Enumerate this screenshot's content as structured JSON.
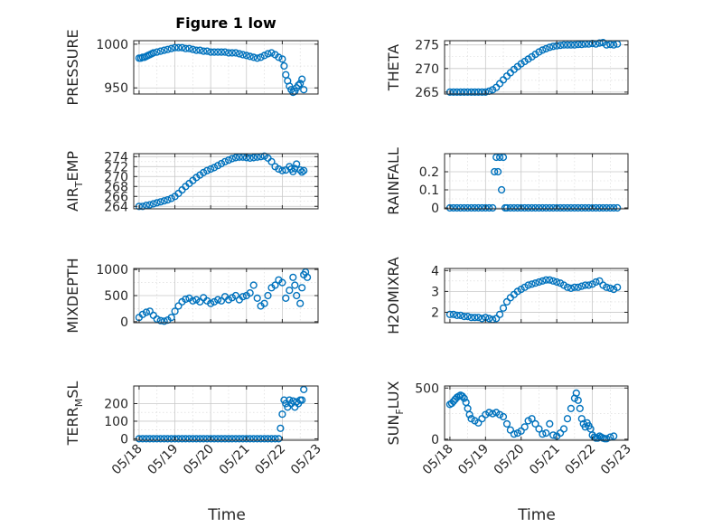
{
  "figure": {
    "title": "Figure 1 low",
    "xlabel": "Time"
  },
  "colors": {
    "marker": "#0072BD",
    "axes": "#262626",
    "grid": "#c8c8c8"
  },
  "chart_data": [
    {
      "type": "scatter",
      "name": "pressure",
      "ylabel": "PRESSURE",
      "ylim": [
        943,
        1004
      ],
      "yticks": [
        "950",
        "1000"
      ],
      "ytick_values": [
        950,
        1000
      ],
      "xticks": [],
      "grid": true,
      "x": [
        0,
        0.05,
        0.1,
        0.15,
        0.2,
        0.25,
        0.3,
        0.35,
        0.4,
        0.5,
        0.6,
        0.7,
        0.8,
        0.9,
        1.0,
        1.1,
        1.2,
        1.3,
        1.4,
        1.5,
        1.6,
        1.7,
        1.8,
        1.9,
        2.0,
        2.1,
        2.2,
        2.3,
        2.4,
        2.5,
        2.6,
        2.7,
        2.8,
        2.9,
        3.0,
        3.1,
        3.2,
        3.3,
        3.4,
        3.5,
        3.6,
        3.7,
        3.8,
        3.9,
        4.0,
        4.05,
        4.1,
        4.15,
        4.2,
        4.25,
        4.3,
        4.35,
        4.4,
        4.45,
        4.5,
        4.55,
        4.6
      ],
      "y": [
        984,
        984,
        985,
        985,
        986,
        987,
        988,
        989,
        990,
        991,
        992,
        993,
        994,
        995,
        996,
        996,
        996,
        995,
        995,
        994,
        993,
        993,
        992,
        992,
        991,
        991,
        991,
        991,
        991,
        990,
        990,
        990,
        989,
        988,
        987,
        986,
        985,
        984,
        985,
        987,
        989,
        990,
        988,
        985,
        983,
        975,
        965,
        958,
        952,
        948,
        945,
        946,
        950,
        953,
        955,
        960,
        948
      ]
    },
    {
      "type": "scatter",
      "name": "theta",
      "ylabel": "THETA",
      "ylim": [
        264.6,
        275.9
      ],
      "yticks": [
        "265",
        "270",
        "275"
      ],
      "ytick_values": [
        265,
        270,
        275
      ],
      "xticks": [],
      "grid": true,
      "x": [
        0,
        0.1,
        0.2,
        0.3,
        0.4,
        0.5,
        0.6,
        0.7,
        0.8,
        0.9,
        1.0,
        1.1,
        1.2,
        1.3,
        1.4,
        1.5,
        1.6,
        1.7,
        1.8,
        1.9,
        2.0,
        2.1,
        2.2,
        2.3,
        2.4,
        2.5,
        2.6,
        2.7,
        2.8,
        2.9,
        3.0,
        3.1,
        3.2,
        3.3,
        3.4,
        3.5,
        3.6,
        3.7,
        3.8,
        3.9,
        4.0,
        4.1,
        4.2,
        4.3,
        4.4,
        4.5,
        4.6,
        4.7
      ],
      "y": [
        265,
        265,
        265,
        265,
        265,
        265,
        265,
        265,
        265,
        265,
        265,
        265.2,
        265.5,
        266,
        266.8,
        267.6,
        268.4,
        269.1,
        269.8,
        270.4,
        271,
        271.5,
        272,
        272.5,
        273,
        273.5,
        273.9,
        274.2,
        274.5,
        274.7,
        274.8,
        274.9,
        275,
        275,
        275,
        275,
        275.1,
        275.1,
        275.2,
        275.2,
        275.3,
        275.2,
        275.4,
        275.5,
        275,
        275.1,
        275,
        275.2
      ]
    },
    {
      "type": "scatter",
      "name": "air-temp",
      "ylabel": "AIR_TEMP",
      "ylim": [
        263.5,
        274.6
      ],
      "yticks": [
        "264",
        "266",
        "268",
        "270",
        "272",
        "274"
      ],
      "ytick_values": [
        264,
        266,
        268,
        270,
        272,
        274
      ],
      "xticks": [],
      "grid": true,
      "x": [
        0,
        0.1,
        0.2,
        0.3,
        0.4,
        0.5,
        0.6,
        0.7,
        0.8,
        0.9,
        1.0,
        1.1,
        1.2,
        1.3,
        1.4,
        1.5,
        1.6,
        1.7,
        1.8,
        1.9,
        2.0,
        2.1,
        2.2,
        2.3,
        2.4,
        2.5,
        2.6,
        2.7,
        2.8,
        2.9,
        3.0,
        3.1,
        3.2,
        3.3,
        3.4,
        3.5,
        3.6,
        3.7,
        3.8,
        3.9,
        4.0,
        4.1,
        4.2,
        4.25,
        4.3,
        4.35,
        4.4,
        4.5,
        4.55,
        4.6
      ],
      "y": [
        264,
        264,
        264.2,
        264.3,
        264.5,
        264.7,
        264.9,
        265.1,
        265.3,
        265.6,
        266,
        266.6,
        267.3,
        268,
        268.6,
        269.2,
        269.8,
        270.3,
        270.8,
        271.2,
        271.5,
        271.8,
        272.2,
        272.6,
        273,
        273.3,
        273.6,
        273.8,
        273.9,
        273.9,
        273.8,
        273.7,
        273.8,
        273.9,
        274,
        274.1,
        273.7,
        273,
        272,
        271.5,
        271.2,
        271.3,
        272,
        271.5,
        271,
        271.6,
        272.5,
        271.3,
        270.9,
        271.2
      ]
    },
    {
      "type": "scatter",
      "name": "rainfall",
      "ylabel": "RAINFALL",
      "ylim": [
        -0.005,
        0.3
      ],
      "yticks": [
        "0",
        "0.1",
        "0.2"
      ],
      "ytick_values": [
        0,
        0.1,
        0.2
      ],
      "xticks": [],
      "grid": true,
      "x": [
        0,
        0.1,
        0.2,
        0.3,
        0.4,
        0.5,
        0.6,
        0.7,
        0.8,
        0.9,
        1.0,
        1.1,
        1.2,
        1.25,
        1.3,
        1.35,
        1.4,
        1.45,
        1.5,
        1.55,
        1.6,
        1.7,
        1.8,
        1.9,
        2.0,
        2.1,
        2.2,
        2.3,
        2.4,
        2.5,
        2.6,
        2.7,
        2.8,
        2.9,
        3.0,
        3.1,
        3.2,
        3.3,
        3.4,
        3.5,
        3.6,
        3.7,
        3.8,
        3.9,
        4.0,
        4.1,
        4.2,
        4.3,
        4.4,
        4.5,
        4.6,
        4.7
      ],
      "y": [
        0,
        0,
        0,
        0,
        0,
        0,
        0,
        0,
        0,
        0,
        0,
        0,
        0,
        0.2,
        0.28,
        0.2,
        0.28,
        0.1,
        0.28,
        0,
        0,
        0,
        0,
        0,
        0,
        0,
        0,
        0,
        0,
        0,
        0,
        0,
        0,
        0,
        0,
        0,
        0,
        0,
        0,
        0,
        0,
        0,
        0,
        0,
        0,
        0,
        0,
        0,
        0,
        0,
        0,
        0
      ]
    },
    {
      "type": "scatter",
      "name": "mixdepth",
      "ylabel": "MIXDEPTH",
      "ylim": [
        -20,
        1020
      ],
      "yticks": [
        "0",
        "500",
        "1000"
      ],
      "ytick_values": [
        0,
        500,
        1000
      ],
      "xticks": [],
      "grid": true,
      "x": [
        0,
        0.1,
        0.2,
        0.3,
        0.4,
        0.5,
        0.6,
        0.7,
        0.8,
        0.9,
        1.0,
        1.1,
        1.2,
        1.3,
        1.4,
        1.5,
        1.6,
        1.7,
        1.8,
        1.9,
        2.0,
        2.1,
        2.2,
        2.3,
        2.4,
        2.5,
        2.6,
        2.7,
        2.8,
        2.9,
        3.0,
        3.1,
        3.2,
        3.3,
        3.4,
        3.5,
        3.6,
        3.7,
        3.8,
        3.9,
        4.0,
        4.1,
        4.2,
        4.3,
        4.35,
        4.4,
        4.5,
        4.55,
        4.6,
        4.65,
        4.7
      ],
      "y": [
        80,
        140,
        180,
        200,
        120,
        50,
        20,
        10,
        30,
        80,
        200,
        300,
        380,
        430,
        450,
        400,
        420,
        380,
        460,
        400,
        350,
        380,
        420,
        400,
        480,
        420,
        460,
        500,
        420,
        480,
        500,
        550,
        700,
        450,
        300,
        350,
        500,
        650,
        700,
        800,
        750,
        450,
        600,
        850,
        700,
        500,
        350,
        650,
        900,
        950,
        850
      ]
    },
    {
      "type": "scatter",
      "name": "h2omixra",
      "ylabel": "H2OMIXRA",
      "ylim": [
        1.5,
        4.1
      ],
      "yticks": [
        "2",
        "3",
        "4"
      ],
      "ytick_values": [
        2,
        3,
        4
      ],
      "xticks": [],
      "grid": true,
      "x": [
        0,
        0.1,
        0.2,
        0.3,
        0.4,
        0.5,
        0.6,
        0.7,
        0.8,
        0.9,
        1.0,
        1.1,
        1.2,
        1.3,
        1.4,
        1.5,
        1.6,
        1.7,
        1.8,
        1.9,
        2.0,
        2.1,
        2.2,
        2.3,
        2.4,
        2.5,
        2.6,
        2.7,
        2.8,
        2.9,
        3.0,
        3.1,
        3.2,
        3.3,
        3.4,
        3.5,
        3.6,
        3.7,
        3.8,
        3.9,
        4.0,
        4.1,
        4.2,
        4.3,
        4.4,
        4.5,
        4.6,
        4.7
      ],
      "y": [
        1.9,
        1.9,
        1.85,
        1.85,
        1.8,
        1.8,
        1.75,
        1.75,
        1.75,
        1.7,
        1.75,
        1.7,
        1.65,
        1.7,
        1.9,
        2.2,
        2.5,
        2.7,
        2.85,
        3.0,
        3.1,
        3.2,
        3.3,
        3.35,
        3.4,
        3.45,
        3.5,
        3.55,
        3.55,
        3.5,
        3.45,
        3.4,
        3.3,
        3.2,
        3.15,
        3.2,
        3.2,
        3.25,
        3.3,
        3.3,
        3.35,
        3.45,
        3.5,
        3.3,
        3.2,
        3.15,
        3.1,
        3.2
      ]
    },
    {
      "type": "scatter",
      "name": "terr-msl",
      "ylabel": "TERR_MSL",
      "ylim": [
        -8,
        300
      ],
      "yticks": [
        "0",
        "100",
        "200"
      ],
      "ytick_values": [
        0,
        100,
        200
      ],
      "xticks": [
        "05/18",
        "05/19",
        "05/20",
        "05/21",
        "05/22",
        "05/23"
      ],
      "xtick_values": [
        0,
        1,
        2,
        3,
        4,
        5
      ],
      "grid": true,
      "x": [
        0,
        0.1,
        0.2,
        0.3,
        0.4,
        0.5,
        0.6,
        0.7,
        0.8,
        0.9,
        1.0,
        1.1,
        1.2,
        1.3,
        1.4,
        1.5,
        1.6,
        1.7,
        1.8,
        1.9,
        2.0,
        2.1,
        2.2,
        2.3,
        2.4,
        2.5,
        2.6,
        2.7,
        2.8,
        2.9,
        3.0,
        3.1,
        3.2,
        3.3,
        3.4,
        3.5,
        3.6,
        3.7,
        3.8,
        3.9,
        3.95,
        4.0,
        4.05,
        4.1,
        4.15,
        4.2,
        4.25,
        4.3,
        4.35,
        4.4,
        4.45,
        4.5,
        4.55,
        4.6
      ],
      "y": [
        0,
        0,
        0,
        0,
        0,
        0,
        0,
        0,
        0,
        0,
        0,
        0,
        0,
        0,
        0,
        0,
        0,
        0,
        0,
        0,
        0,
        0,
        0,
        0,
        0,
        0,
        0,
        0,
        0,
        0,
        0,
        0,
        0,
        0,
        0,
        0,
        0,
        0,
        0,
        0,
        60,
        140,
        220,
        200,
        180,
        220,
        200,
        215,
        180,
        210,
        200,
        220,
        220,
        280
      ]
    },
    {
      "type": "scatter",
      "name": "sun-flux",
      "ylabel": "SUN_FLUX",
      "ylim": [
        -10,
        520
      ],
      "yticks": [
        "0",
        "500"
      ],
      "ytick_values": [
        0,
        500
      ],
      "xticks": [
        "05/18",
        "05/19",
        "05/20",
        "05/21",
        "05/22",
        "05/23"
      ],
      "xtick_values": [
        0,
        1,
        2,
        3,
        4,
        5
      ],
      "grid": true,
      "x": [
        0,
        0.05,
        0.1,
        0.15,
        0.2,
        0.25,
        0.3,
        0.35,
        0.4,
        0.45,
        0.5,
        0.55,
        0.6,
        0.7,
        0.8,
        0.9,
        1.0,
        1.1,
        1.2,
        1.3,
        1.4,
        1.5,
        1.6,
        1.7,
        1.8,
        1.9,
        2.0,
        2.1,
        2.2,
        2.3,
        2.4,
        2.5,
        2.6,
        2.7,
        2.8,
        2.9,
        3.0,
        3.1,
        3.2,
        3.3,
        3.4,
        3.5,
        3.55,
        3.6,
        3.65,
        3.7,
        3.75,
        3.8,
        3.85,
        3.9,
        3.95,
        4.0,
        4.05,
        4.1,
        4.15,
        4.2,
        4.25,
        4.3,
        4.35,
        4.4,
        4.5,
        4.6
      ],
      "y": [
        340,
        350,
        370,
        390,
        410,
        420,
        430,
        420,
        400,
        360,
        300,
        240,
        200,
        180,
        160,
        200,
        240,
        260,
        250,
        260,
        240,
        220,
        150,
        90,
        50,
        60,
        80,
        120,
        180,
        200,
        150,
        100,
        50,
        60,
        150,
        40,
        30,
        60,
        100,
        200,
        300,
        400,
        450,
        380,
        300,
        200,
        150,
        120,
        160,
        130,
        100,
        40,
        20,
        10,
        10,
        30,
        20,
        10,
        5,
        5,
        20,
        30
      ]
    }
  ]
}
